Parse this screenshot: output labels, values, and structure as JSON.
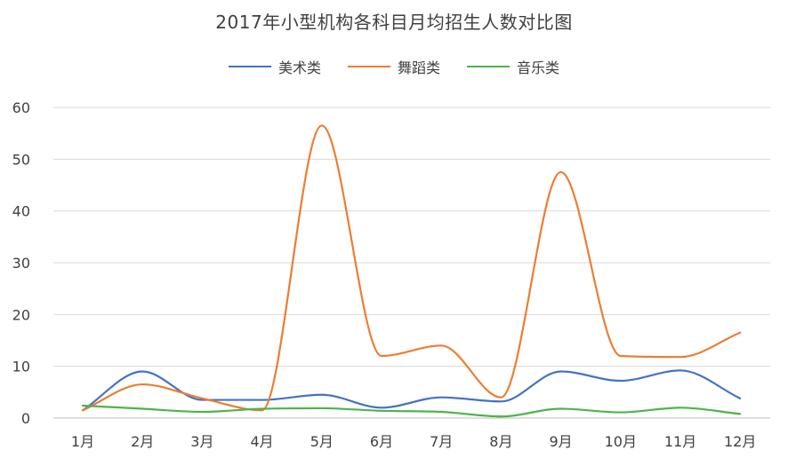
{
  "chart_data": {
    "type": "line",
    "title": "2017年小型机构各科目月均招生人数对比图",
    "categories": [
      "1月",
      "2月",
      "3月",
      "4月",
      "5月",
      "6月",
      "7月",
      "8月",
      "9月",
      "10月",
      "11月",
      "12月"
    ],
    "series": [
      {
        "name": "美术类",
        "color": "#4472c4",
        "values": [
          1.5,
          9,
          3.5,
          3.5,
          4.5,
          2,
          4,
          3.2,
          9,
          7.2,
          9.2,
          3.8
        ]
      },
      {
        "name": "舞蹈类",
        "color": "#ed7d31",
        "values": [
          1.5,
          6.5,
          3.8,
          1.5,
          56.5,
          12,
          14,
          4,
          47.5,
          12,
          11.8,
          16.5
        ]
      },
      {
        "name": "音乐类",
        "color": "#4eb34e",
        "values": [
          2.4,
          1.8,
          1.2,
          1.8,
          1.9,
          1.4,
          1.2,
          0.3,
          1.8,
          1.1,
          2.0,
          0.8
        ]
      }
    ],
    "yticks": [
      "0",
      "10",
      "20",
      "30",
      "40",
      "50",
      "60"
    ],
    "ylim": [
      0,
      60
    ],
    "smooth": true,
    "grid": true,
    "legend_position": "top-center"
  }
}
